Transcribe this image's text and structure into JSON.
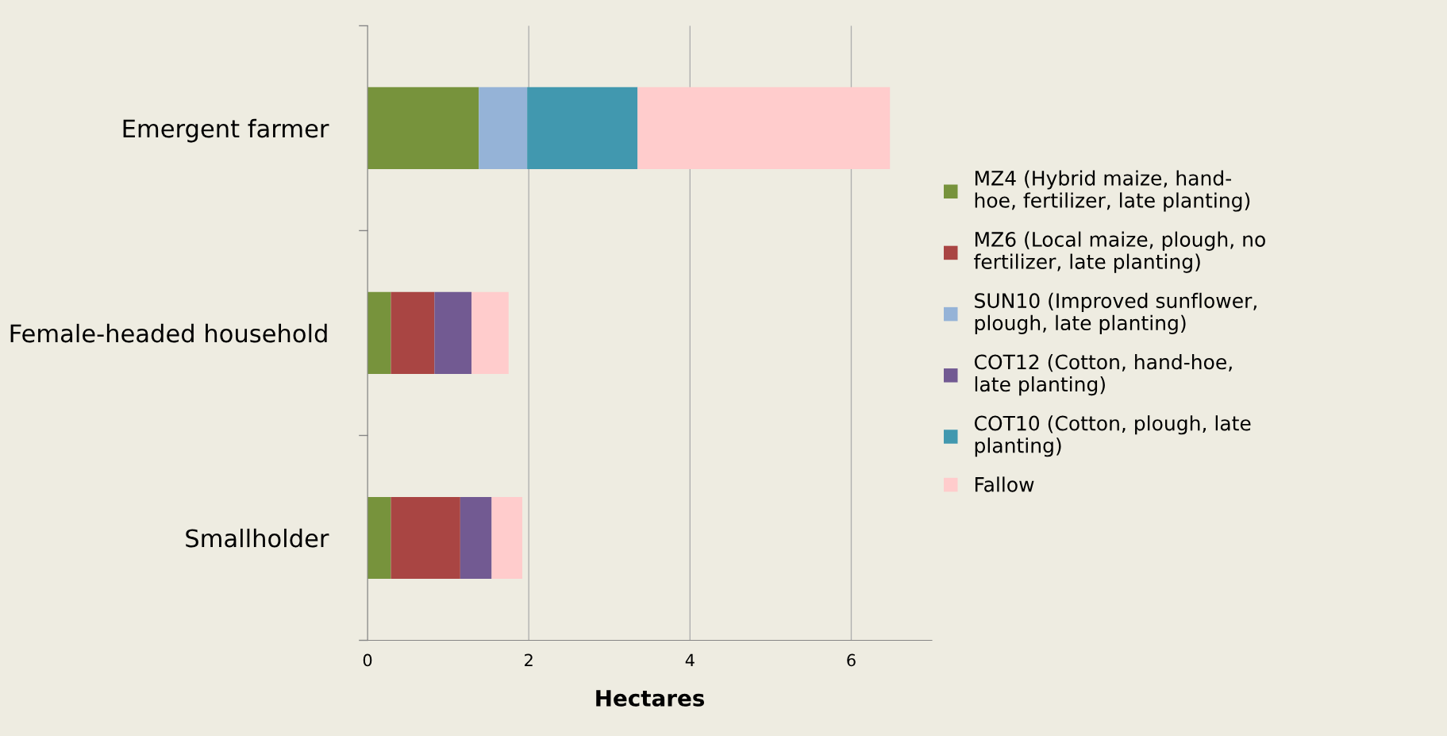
{
  "chart_data": {
    "type": "bar",
    "orientation": "horizontal",
    "stacked": true,
    "categories": [
      "Emergent farmer",
      "Female-headed household",
      "Smallholder"
    ],
    "series": [
      {
        "name": "MZ4 (Hybrid maize, hand-\nhoe, fertilizer, late planting)",
        "color": "#77933c",
        "values": [
          1.38,
          0.29,
          0.29
        ]
      },
      {
        "name": "MZ6 (Local maize, plough, no\nfertilizer, late planting)",
        "color": "#a94543",
        "values": [
          0,
          0.54,
          0.86
        ]
      },
      {
        "name": "SUN10 (Improved sunflower,\nplough, late planting)",
        "color": "#95b3d7",
        "values": [
          0.6,
          0,
          0
        ]
      },
      {
        "name": "COT12 (Cotton, hand-hoe,\nlate planting)",
        "color": "#725a92",
        "values": [
          0,
          0.46,
          0.39
        ]
      },
      {
        "name": "COT10 (Cotton, plough, late\nplanting)",
        "color": "#4198af",
        "values": [
          1.37,
          0,
          0
        ]
      },
      {
        "name": "Fallow",
        "color": "#ffcccc",
        "values": [
          3.13,
          0.46,
          0.38
        ]
      }
    ],
    "xlabel": "Hectares",
    "xlim": [
      0,
      7
    ],
    "xticks": [
      0,
      2,
      4,
      6
    ],
    "grid": "x",
    "legend": "right"
  }
}
